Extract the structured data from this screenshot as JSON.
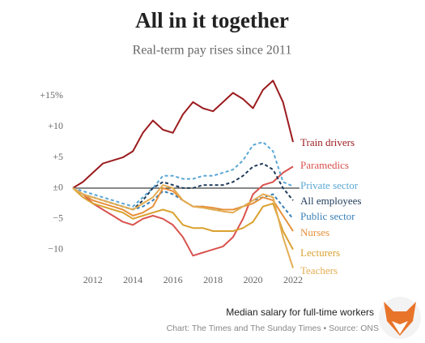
{
  "chart_data": {
    "type": "line",
    "title": "All in it together",
    "subtitle": "Real-term pay rises since 2011",
    "note": "Median salary for full-time workers",
    "source": "Chart: The Times and The Sunday Times • Source: ONS",
    "x": [
      2011,
      2011.5,
      2012,
      2012.5,
      2013,
      2013.5,
      2014,
      2014.5,
      2015,
      2015.5,
      2016,
      2016.5,
      2017,
      2017.5,
      2018,
      2018.5,
      2019,
      2019.5,
      2020,
      2020.5,
      2021,
      2021.5,
      2022
    ],
    "xlim": [
      2011,
      2022
    ],
    "xticks": [
      2012,
      2014,
      2016,
      2018,
      2020,
      2022
    ],
    "ylim": [
      -14,
      19
    ],
    "yticks": [
      {
        "value": 15,
        "label": "+15%"
      },
      {
        "value": 10,
        "label": "+10"
      },
      {
        "value": 5,
        "label": "+5"
      },
      {
        "value": 0,
        "label": "±0"
      },
      {
        "value": -5,
        "label": "−5"
      },
      {
        "value": -10,
        "label": "−10"
      }
    ],
    "grid": false,
    "series": [
      {
        "name": "Train drivers",
        "color": "#9b1b1e",
        "dashed": false,
        "values": [
          0,
          1,
          2.5,
          4,
          4.5,
          5,
          6,
          9,
          11,
          9.5,
          9,
          12,
          14,
          13,
          12.5,
          14,
          15.5,
          14.5,
          13,
          16,
          17.5,
          14,
          7.5
        ]
      },
      {
        "name": "Paramedics",
        "color": "#d9534f",
        "dashed": false,
        "values": [
          0,
          -1,
          -2.5,
          -3.5,
          -4.5,
          -5.5,
          -6,
          -5,
          -4.5,
          -5,
          -6,
          -8,
          -11,
          -10.5,
          -10,
          -9.5,
          -8,
          -5,
          -1,
          0.5,
          1,
          2.5,
          3.5
        ]
      },
      {
        "name": "Private sector",
        "color": "#5aa7d6",
        "dashed": true,
        "values": [
          0,
          -0.5,
          -1,
          -1.5,
          -2,
          -2.5,
          -3,
          -1.5,
          0,
          2,
          2,
          1.5,
          1.5,
          2,
          2,
          2.5,
          3,
          4.5,
          7,
          7.5,
          6,
          1,
          0.3
        ]
      },
      {
        "name": "All employees",
        "color": "#1f3b5a",
        "dashed": true,
        "values": [
          0,
          -1,
          -1.5,
          -2,
          -2.5,
          -3,
          -3.5,
          -2,
          0,
          1,
          0.5,
          0,
          0,
          0.5,
          0.5,
          0.5,
          1,
          2,
          3.5,
          4,
          3,
          0,
          -2
        ]
      },
      {
        "name": "Public sector",
        "color": "#3a7fb5",
        "dashed": true,
        "values": [
          0,
          -1,
          -1.5,
          -2,
          -2.5,
          -3,
          -3.5,
          -3,
          -2,
          -0.5,
          -1,
          -2,
          -3,
          -3,
          -3.5,
          -3.5,
          -3.5,
          -3,
          -2,
          -1.5,
          -1,
          -3,
          -5
        ]
      },
      {
        "name": "Nurses",
        "color": "#e8903a",
        "dashed": false,
        "values": [
          0,
          -1,
          -2,
          -2.5,
          -3,
          -3.5,
          -4.5,
          -4,
          -3,
          0,
          -0.5,
          -2,
          -3,
          -3,
          -3.2,
          -3.5,
          -3.5,
          -3,
          -2.5,
          -1.5,
          -2,
          -4.5,
          -7
        ]
      },
      {
        "name": "Lecturers",
        "color": "#d9a12f",
        "dashed": false,
        "values": [
          0,
          -1.5,
          -2.5,
          -3,
          -3.5,
          -4,
          -5,
          -4.5,
          -4,
          -3.5,
          -4,
          -6,
          -6.5,
          -6.5,
          -7,
          -7,
          -7,
          -6.5,
          -5.5,
          -3,
          -2.5,
          -7,
          -10
        ]
      },
      {
        "name": "Teachers",
        "color": "#e3ad52",
        "dashed": false,
        "values": [
          0,
          -1,
          -1.5,
          -2,
          -2.5,
          -3,
          -3.5,
          -2.5,
          -1.5,
          0.5,
          0,
          -2,
          -3,
          -3.2,
          -3.5,
          -3.8,
          -4,
          -3,
          -2,
          -1,
          -1.5,
          -8,
          -13
        ]
      }
    ]
  }
}
